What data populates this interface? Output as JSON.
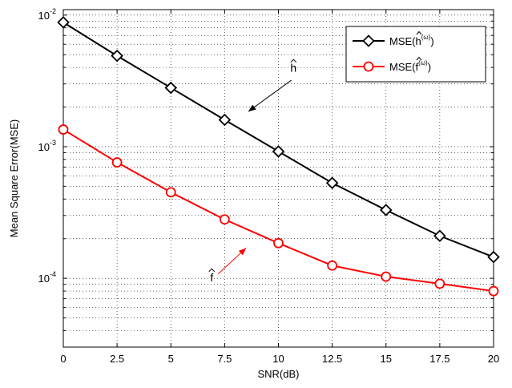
{
  "chart_data": {
    "type": "line",
    "xlabel": "SNR(dB)",
    "ylabel": "Mean Square Error(MSE)",
    "x": [
      0,
      2.5,
      5,
      7.5,
      10,
      12.5,
      15,
      17.5,
      20
    ],
    "xlim": [
      0,
      20
    ],
    "ylim": [
      3e-05,
      0.011
    ],
    "yscale": "log",
    "grid": true,
    "legend_position": "top-right",
    "x_ticks": [
      "0",
      "2.5",
      "5",
      "7.5",
      "10",
      "12.5",
      "15",
      "17.5",
      "20"
    ],
    "y_ticks": [
      {
        "value": 0.0001,
        "base": "10",
        "exp": "-4"
      },
      {
        "value": 0.001,
        "base": "10",
        "exp": "-3"
      },
      {
        "value": 0.01,
        "base": "10",
        "exp": "-2"
      }
    ],
    "series": [
      {
        "name": "MSE(ĥ(ω))",
        "legend_base": "MSE(",
        "legend_sym": "h",
        "legend_sup": "(ω)",
        "legend_close": ")",
        "color": "#000000",
        "marker": "diamond",
        "values": [
          0.0088,
          0.0049,
          0.0028,
          0.0016,
          0.00092,
          0.00053,
          0.00033,
          0.00021,
          0.000145
        ]
      },
      {
        "name": "MSE(f̂(ω))",
        "legend_base": "MSE(",
        "legend_sym": "f",
        "legend_sup": "(ω)",
        "legend_close": ")",
        "color": "#ff0000",
        "marker": "circle",
        "values": [
          0.00135,
          0.00076,
          0.00045,
          0.00028,
          0.000185,
          0.000125,
          0.000103,
          9.1e-05,
          8e-05
        ]
      }
    ],
    "annotations": [
      {
        "label": "h",
        "color": "#000000",
        "text_at": [
          10.7,
          0.0037
        ],
        "arrow_from": [
          10.6,
          0.0032
        ],
        "arrow_to": [
          8.6,
          0.00185
        ]
      },
      {
        "label": "f",
        "color": "#ff0000",
        "text_at": [
          6.9,
          9.5e-05
        ],
        "arrow_from": [
          7.2,
          0.000108
        ],
        "arrow_to": [
          8.5,
          0.00017
        ]
      }
    ]
  }
}
